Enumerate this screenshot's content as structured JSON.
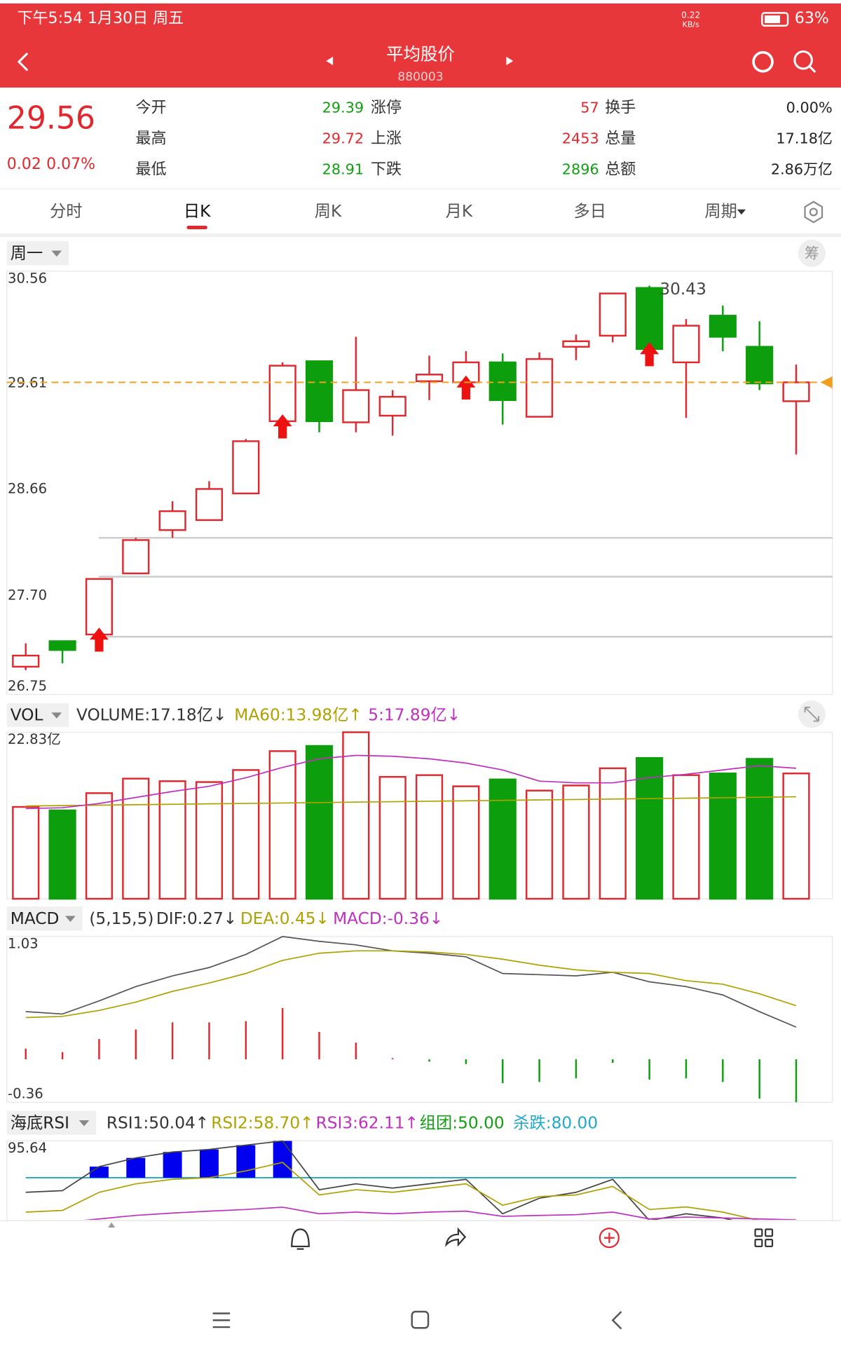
{
  "status_bar": {
    "time": "下午5:54 1月30日 周五",
    "speed": "0.22",
    "speed_unit": "KB/s",
    "battery": "63%"
  },
  "header": {
    "title": "平均股价",
    "code": "880003"
  },
  "quote": {
    "price": "29.56",
    "change": "0.02",
    "change_pct": "0.07%",
    "stats": [
      [
        {
          "label": "今开",
          "value": "29.39",
          "color": "#12a012"
        },
        {
          "label": "涨停",
          "value": "57",
          "color": "#e0282e"
        },
        {
          "label": "换手",
          "value": "0.00%",
          "color": "#222"
        }
      ],
      [
        {
          "label": "最高",
          "value": "29.72",
          "color": "#e0282e"
        },
        {
          "label": "上涨",
          "value": "2453",
          "color": "#e0282e"
        },
        {
          "label": "总量",
          "value": "17.18亿",
          "color": "#222"
        }
      ],
      [
        {
          "label": "最低",
          "value": "28.91",
          "color": "#12a012"
        },
        {
          "label": "下跌",
          "value": "2896",
          "color": "#12a012"
        },
        {
          "label": "总额",
          "value": "2.86万亿",
          "color": "#222"
        }
      ]
    ]
  },
  "tabs": [
    "分时",
    "日K",
    "周K",
    "月K",
    "多日",
    "周期"
  ],
  "active_tab": 1,
  "chart_data": [
    {
      "type": "candlestick",
      "selector": "周一",
      "up_color": "#e0282e",
      "down_color": "#0c9e0c",
      "open": [
        27.0,
        27.23,
        27.29,
        27.84,
        28.23,
        28.32,
        28.56,
        29.21,
        29.75,
        29.2,
        29.26,
        29.57,
        29.56,
        29.74,
        29.25,
        29.88,
        29.98,
        30.41,
        29.74,
        30.16,
        29.88,
        29.39
      ],
      "high": [
        27.21,
        27.23,
        27.79,
        28.16,
        28.49,
        28.67,
        29.05,
        29.74,
        29.75,
        29.97,
        29.49,
        29.8,
        29.84,
        29.82,
        29.83,
        29.99,
        30.36,
        30.43,
        30.13,
        30.25,
        30.11,
        29.72
      ],
      "low": [
        26.97,
        27.03,
        27.17,
        27.85,
        28.16,
        28.32,
        28.56,
        29.18,
        29.11,
        29.11,
        29.08,
        29.4,
        29.45,
        29.18,
        29.25,
        29.76,
        29.92,
        29.86,
        29.24,
        29.84,
        29.49,
        28.91
      ],
      "close": [
        27.1,
        27.15,
        27.79,
        28.14,
        28.4,
        28.6,
        29.03,
        29.71,
        29.21,
        29.49,
        29.43,
        29.63,
        29.74,
        29.4,
        29.77,
        29.93,
        30.36,
        29.86,
        30.07,
        29.97,
        29.55,
        29.56
      ],
      "buy_signals": [
        2,
        7,
        12,
        17
      ],
      "levels": [
        28.16,
        27.81,
        27.27
      ],
      "current_color": "#f0a020",
      "ylim": [
        26.75,
        30.56
      ],
      "yticks": [
        30.56,
        29.61,
        28.66,
        {
          "value": 27.7,
          "label": "27.70"
        },
        26.75
      ]
    },
    {
      "type": "bar",
      "selector": "VOL",
      "legend": [
        {
          "text": "VOLUME:17.18亿↓",
          "color": "#333"
        },
        {
          "text": "MA60:13.98亿↑",
          "color": "#b0a000"
        },
        {
          "text": "5:17.89亿↓",
          "color": "#c030c0"
        }
      ],
      "values": [
        12.59,
        12.12,
        14.48,
        16.47,
        16.12,
        16.0,
        17.65,
        20.24,
        20.95,
        22.83,
        16.71,
        16.95,
        15.42,
        16.36,
        14.83,
        15.53,
        17.89,
        19.3,
        16.95,
        17.18,
        19.18,
        17.18
      ],
      "series": [
        {
          "name": "MA60",
          "color": "#b0a000",
          "values": [
            12.71,
            12.77,
            12.83,
            12.89,
            12.95,
            13.01,
            13.07,
            13.13,
            13.19,
            13.25,
            13.31,
            13.37,
            13.43,
            13.49,
            13.55,
            13.61,
            13.67,
            13.73,
            13.79,
            13.85,
            13.92,
            13.98
          ]
        },
        {
          "name": "5",
          "color": "#c030c0",
          "values": [
            12.36,
            12.48,
            13.06,
            13.89,
            14.71,
            15.42,
            16.59,
            18.01,
            19.19,
            19.66,
            19.54,
            19.19,
            18.6,
            17.66,
            16.13,
            15.89,
            15.89,
            16.6,
            17.07,
            17.66,
            18.24,
            17.89
          ]
        }
      ],
      "ylim": [
        0,
        22.83
      ],
      "yticks": [
        {
          "value": 22.83,
          "label": "22.83亿"
        }
      ]
    },
    {
      "type": "macd",
      "selector": "MACD",
      "legend": [
        {
          "text": "(5,15,5)",
          "color": "#333"
        },
        {
          "text": "DIF:0.27↓",
          "color": "#333"
        },
        {
          "text": "DEA:0.45↓",
          "color": "#b0a000"
        },
        {
          "text": "MACD:-0.36↓",
          "color": "#c030c0"
        }
      ],
      "values": [
        0.09,
        0.06,
        0.17,
        0.25,
        0.31,
        0.31,
        0.32,
        0.43,
        0.23,
        0.14,
        0.01,
        -0.02,
        -0.04,
        -0.2,
        -0.19,
        -0.16,
        -0.03,
        -0.17,
        -0.16,
        -0.19,
        -0.33,
        -0.36
      ],
      "up_color": "#e0282e",
      "down_color": "#0c9e0c",
      "series": [
        {
          "name": "DIF",
          "color": "#555",
          "values": [
            0.4,
            0.38,
            0.49,
            0.61,
            0.7,
            0.77,
            0.88,
            1.03,
            0.99,
            0.96,
            0.91,
            0.89,
            0.86,
            0.72,
            0.71,
            0.7,
            0.73,
            0.65,
            0.61,
            0.54,
            0.4,
            0.27
          ]
        },
        {
          "name": "DEA",
          "color": "#b0a000",
          "values": [
            0.35,
            0.36,
            0.41,
            0.48,
            0.57,
            0.64,
            0.72,
            0.83,
            0.89,
            0.91,
            0.91,
            0.9,
            0.88,
            0.84,
            0.79,
            0.75,
            0.73,
            0.72,
            0.66,
            0.63,
            0.55,
            0.45
          ]
        }
      ],
      "ylim": [
        -0.36,
        1.03
      ],
      "yticks": [
        1.03,
        -0.36
      ]
    },
    {
      "type": "rsi",
      "selector": "海底RSI",
      "legend": [
        {
          "text": "RSI1:50.04↑",
          "color": "#333"
        },
        {
          "text": "RSI2:58.70↑",
          "color": "#b0a000"
        },
        {
          "text": "RSI3:62.11↑",
          "color": "#c030c0"
        },
        {
          "text": "组团:50.00",
          "color": "#12a012"
        },
        {
          "text": "杀跌:80.00",
          "color": "#20a8c8"
        }
      ],
      "series": [
        {
          "name": "RSI1",
          "color": "#444",
          "values": [
            73.8,
            74.5,
            84.7,
            88.4,
            90.9,
            92.0,
            93.8,
            95.6,
            74.9,
            77.4,
            75.6,
            77.4,
            79.3,
            64.7,
            71.3,
            73.8,
            79.3,
            61.8,
            64.7,
            62.9,
            59.3,
            50.04
          ]
        },
        {
          "name": "RSI2",
          "color": "#b0a000",
          "values": [
            65.4,
            66.1,
            73.8,
            77.4,
            79.3,
            80.0,
            82.9,
            86.5,
            72.7,
            74.9,
            73.8,
            75.6,
            77.4,
            68.3,
            72.0,
            72.7,
            76.3,
            66.5,
            67.6,
            65.4,
            61.8,
            58.7
          ]
        },
        {
          "name": "RSI3",
          "color": "#c030c0",
          "values": [
            60.0,
            61.0,
            62.5,
            64.0,
            65.0,
            65.8,
            66.5,
            67.5,
            64.7,
            65.4,
            64.7,
            65.4,
            65.8,
            63.6,
            64.0,
            64.3,
            65.4,
            62.5,
            63.3,
            62.9,
            62.5,
            62.11
          ]
        }
      ],
      "hline": 80,
      "hline_color": "#20a8c8",
      "bar_color": "#0000ee",
      "ylim": [
        41,
        95.64
      ],
      "yticks": [
        95.64
      ]
    }
  ]
}
